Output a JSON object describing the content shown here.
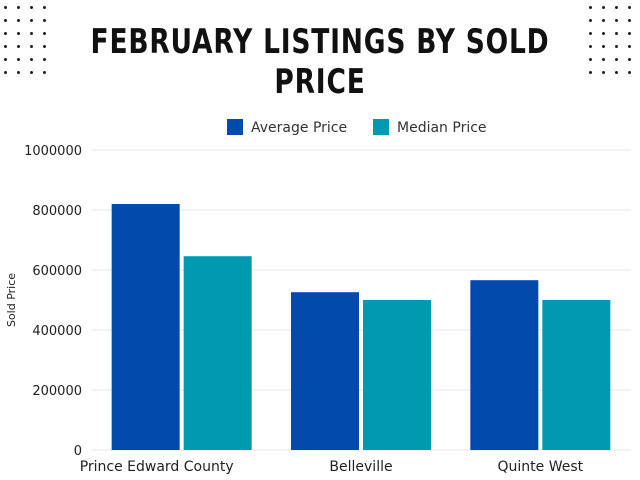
{
  "chart_data": {
    "type": "bar",
    "title": "FEBRUARY LISTINGS BY SOLD PRICE",
    "xlabel": "",
    "ylabel": "Sold Price",
    "categories": [
      "Prince Edward County",
      "Belleville",
      "Quinte West"
    ],
    "series": [
      {
        "name": "Average Price",
        "color": "#034AAD",
        "values": [
          820000,
          526000,
          566000
        ]
      },
      {
        "name": "Median Price",
        "color": "#009AB0",
        "values": [
          646000,
          500000,
          500000
        ]
      }
    ],
    "ylim": [
      0,
      1000000
    ],
    "yticks": [
      "0",
      "200000",
      "400000",
      "600000",
      "800000",
      "1000000"
    ],
    "legend_position": "top-center",
    "grid": true
  }
}
